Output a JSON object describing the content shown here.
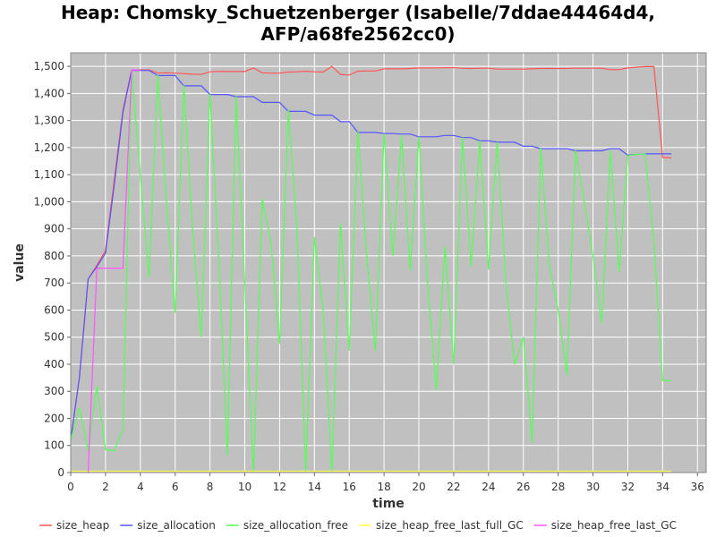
{
  "chart_data": {
    "type": "line",
    "title_line1": "Heap: Chomsky_Schuetzenberger (Isabelle/7ddae44464d4,",
    "title_line2": "AFP/a68fe2562cc0)",
    "xlabel": "time",
    "ylabel": "value",
    "xlim": [
      0,
      36.5
    ],
    "ylim": [
      0,
      1550
    ],
    "xticks": [
      0,
      2,
      4,
      6,
      8,
      10,
      12,
      14,
      16,
      18,
      20,
      22,
      24,
      26,
      28,
      30,
      32,
      34,
      36
    ],
    "yticks": [
      0,
      100,
      200,
      300,
      400,
      500,
      600,
      700,
      800,
      900,
      1000,
      1100,
      1200,
      1300,
      1400,
      1500
    ],
    "ytick_labels": [
      "0",
      "100",
      "200",
      "300",
      "400",
      "500",
      "600",
      "700",
      "800",
      "900",
      "1,000",
      "1,100",
      "1,200",
      "1,300",
      "1,400",
      "1,500"
    ],
    "grid": true,
    "legend_position": "bottom",
    "series": [
      {
        "name": "size_heap",
        "color": "#ff5555",
        "points": [
          [
            0,
            120
          ],
          [
            0.5,
            350
          ],
          [
            1,
            715
          ],
          [
            1.5,
            765
          ],
          [
            2,
            820
          ],
          [
            2.5,
            1080
          ],
          [
            3,
            1340
          ],
          [
            3.5,
            1487
          ],
          [
            4,
            1487
          ],
          [
            4.5,
            1487
          ],
          [
            5,
            1475
          ],
          [
            5.5,
            1476
          ],
          [
            6,
            1475
          ],
          [
            6.5,
            1473
          ],
          [
            7,
            1471
          ],
          [
            7.5,
            1470
          ],
          [
            8,
            1480
          ],
          [
            8.5,
            1481
          ],
          [
            9,
            1481
          ],
          [
            9.5,
            1481
          ],
          [
            10,
            1481
          ],
          [
            10.5,
            1494
          ],
          [
            11,
            1476
          ],
          [
            11.5,
            1475
          ],
          [
            12,
            1475
          ],
          [
            12.5,
            1479
          ],
          [
            13,
            1480
          ],
          [
            13.5,
            1482
          ],
          [
            14,
            1480
          ],
          [
            14.5,
            1479
          ],
          [
            15,
            1500
          ],
          [
            15.5,
            1470
          ],
          [
            16,
            1468
          ],
          [
            16.5,
            1482
          ],
          [
            17,
            1483
          ],
          [
            17.5,
            1483
          ],
          [
            18,
            1491
          ],
          [
            18.5,
            1491
          ],
          [
            19,
            1491
          ],
          [
            19.5,
            1492
          ],
          [
            20,
            1494
          ],
          [
            20.5,
            1494
          ],
          [
            21,
            1494
          ],
          [
            21.5,
            1495
          ],
          [
            22,
            1495
          ],
          [
            22.5,
            1493
          ],
          [
            23,
            1492
          ],
          [
            23.5,
            1493
          ],
          [
            24,
            1493
          ],
          [
            24.5,
            1490
          ],
          [
            25,
            1490
          ],
          [
            25.5,
            1490
          ],
          [
            26,
            1490
          ],
          [
            26.5,
            1491
          ],
          [
            27,
            1492
          ],
          [
            27.5,
            1492
          ],
          [
            28,
            1492
          ],
          [
            28.5,
            1492
          ],
          [
            29,
            1493
          ],
          [
            29.5,
            1493
          ],
          [
            30,
            1493
          ],
          [
            30.5,
            1493
          ],
          [
            31,
            1488
          ],
          [
            31.5,
            1488
          ],
          [
            32,
            1494
          ],
          [
            32.5,
            1497
          ],
          [
            33,
            1499
          ],
          [
            33.5,
            1499
          ],
          [
            34,
            1163
          ],
          [
            34.5,
            1163
          ]
        ]
      },
      {
        "name": "size_allocation",
        "color": "#5555ff",
        "points": [
          [
            0,
            120
          ],
          [
            0.5,
            350
          ],
          [
            1,
            715
          ],
          [
            1.5,
            760
          ],
          [
            2,
            810
          ],
          [
            2.5,
            1060
          ],
          [
            3,
            1330
          ],
          [
            3.5,
            1485
          ],
          [
            4,
            1485
          ],
          [
            4.5,
            1485
          ],
          [
            5,
            1466
          ],
          [
            5.5,
            1466
          ],
          [
            6,
            1466
          ],
          [
            6.5,
            1428
          ],
          [
            7,
            1428
          ],
          [
            7.5,
            1428
          ],
          [
            8,
            1396
          ],
          [
            8.5,
            1396
          ],
          [
            9,
            1396
          ],
          [
            9.5,
            1388
          ],
          [
            10,
            1388
          ],
          [
            10.5,
            1388
          ],
          [
            11,
            1367
          ],
          [
            11.5,
            1367
          ],
          [
            12,
            1367
          ],
          [
            12.5,
            1334
          ],
          [
            13,
            1334
          ],
          [
            13.5,
            1334
          ],
          [
            14,
            1320
          ],
          [
            14.5,
            1320
          ],
          [
            15,
            1320
          ],
          [
            15.5,
            1296
          ],
          [
            16,
            1296
          ],
          [
            16.5,
            1256
          ],
          [
            17,
            1256
          ],
          [
            17.5,
            1256
          ],
          [
            18,
            1252
          ],
          [
            18.5,
            1252
          ],
          [
            19,
            1250
          ],
          [
            19.5,
            1250
          ],
          [
            20,
            1240
          ],
          [
            20.5,
            1240
          ],
          [
            21,
            1240
          ],
          [
            21.5,
            1245
          ],
          [
            22,
            1245
          ],
          [
            22.5,
            1237
          ],
          [
            23,
            1237
          ],
          [
            23.5,
            1225
          ],
          [
            24,
            1225
          ],
          [
            24.5,
            1220
          ],
          [
            25,
            1220
          ],
          [
            25.5,
            1220
          ],
          [
            26,
            1205
          ],
          [
            26.5,
            1205
          ],
          [
            27,
            1196
          ],
          [
            27.5,
            1196
          ],
          [
            28,
            1196
          ],
          [
            28.5,
            1196
          ],
          [
            29,
            1188
          ],
          [
            29.5,
            1188
          ],
          [
            30,
            1188
          ],
          [
            30.5,
            1188
          ],
          [
            31,
            1196
          ],
          [
            31.5,
            1196
          ],
          [
            32,
            1172
          ],
          [
            32.5,
            1175
          ],
          [
            33,
            1177
          ],
          [
            33.5,
            1177
          ],
          [
            34,
            1177
          ],
          [
            34.5,
            1177
          ]
        ]
      },
      {
        "name": "size_allocation_free",
        "color": "#55ff55",
        "points": [
          [
            0,
            120
          ],
          [
            0.5,
            240
          ],
          [
            1,
            80
          ],
          [
            1.5,
            320
          ],
          [
            2,
            85
          ],
          [
            2.5,
            80
          ],
          [
            3,
            160
          ],
          [
            3.5,
            1487
          ],
          [
            4,
            1100
          ],
          [
            4.5,
            720
          ],
          [
            5,
            1470
          ],
          [
            5.5,
            1000
          ],
          [
            6,
            590
          ],
          [
            6.5,
            1430
          ],
          [
            7,
            900
          ],
          [
            7.5,
            500
          ],
          [
            8,
            1400
          ],
          [
            8.5,
            800
          ],
          [
            9,
            65
          ],
          [
            9.5,
            1390
          ],
          [
            10,
            700
          ],
          [
            10.5,
            0
          ],
          [
            11,
            1010
          ],
          [
            11.5,
            850
          ],
          [
            12,
            475
          ],
          [
            12.5,
            1340
          ],
          [
            13,
            900
          ],
          [
            13.5,
            0
          ],
          [
            14,
            870
          ],
          [
            14.5,
            600
          ],
          [
            15,
            0
          ],
          [
            15.5,
            920
          ],
          [
            16,
            450
          ],
          [
            16.5,
            1260
          ],
          [
            17,
            800
          ],
          [
            17.5,
            450
          ],
          [
            18,
            1250
          ],
          [
            18.5,
            800
          ],
          [
            19,
            1245
          ],
          [
            19.5,
            745
          ],
          [
            20,
            1240
          ],
          [
            20.5,
            700
          ],
          [
            21,
            305
          ],
          [
            21.5,
            835
          ],
          [
            22,
            400
          ],
          [
            22.5,
            1238
          ],
          [
            23,
            760
          ],
          [
            23.5,
            1225
          ],
          [
            24,
            750
          ],
          [
            24.5,
            1220
          ],
          [
            25,
            700
          ],
          [
            25.5,
            400
          ],
          [
            26,
            500
          ],
          [
            26.5,
            110
          ],
          [
            27,
            1200
          ],
          [
            27.5,
            760
          ],
          [
            28,
            600
          ],
          [
            28.5,
            360
          ],
          [
            29,
            1190
          ],
          [
            29.5,
            1000
          ],
          [
            30,
            800
          ],
          [
            30.5,
            550
          ],
          [
            31,
            1190
          ],
          [
            31.5,
            740
          ],
          [
            32,
            1170
          ],
          [
            32.5,
            1175
          ],
          [
            33,
            1177
          ],
          [
            33.5,
            850
          ],
          [
            34,
            340
          ],
          [
            34.5,
            340
          ]
        ]
      },
      {
        "name": "size_heap_free_last_full_GC",
        "color": "#ffff55",
        "points": [
          [
            0,
            5
          ],
          [
            34.5,
            5
          ]
        ]
      },
      {
        "name": "size_heap_free_last_GC",
        "color": "#ff55ff",
        "points": [
          [
            1,
            0
          ],
          [
            1.5,
            755
          ],
          [
            2,
            755
          ],
          [
            2.5,
            755
          ],
          [
            3,
            755
          ],
          [
            3.5,
            1487
          ],
          [
            4,
            1487
          ]
        ]
      }
    ]
  }
}
